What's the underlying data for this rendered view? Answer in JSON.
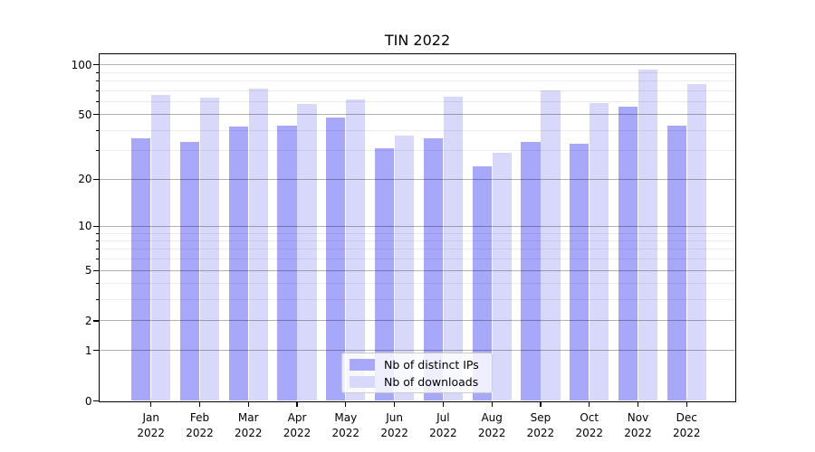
{
  "chart_data": {
    "type": "bar",
    "title": "TIN 2022",
    "year": "2022",
    "months": [
      "Jan",
      "Feb",
      "Mar",
      "Apr",
      "May",
      "Jun",
      "Jul",
      "Aug",
      "Sep",
      "Oct",
      "Nov",
      "Dec"
    ],
    "categories": [
      "Jan 2022",
      "Feb 2022",
      "Mar 2022",
      "Apr 2022",
      "May 2022",
      "Jun 2022",
      "Jul 2022",
      "Aug 2022",
      "Sep 2022",
      "Oct 2022",
      "Nov 2022",
      "Dec 2022"
    ],
    "series": [
      {
        "name": "Nb of distinct IPs",
        "key": "distinct-ips",
        "color": "#a8a8fa",
        "values": [
          36,
          34,
          42,
          43,
          48,
          31,
          36,
          24,
          34,
          33,
          56,
          43
        ]
      },
      {
        "name": "Nb of downloads",
        "key": "downloads",
        "color": "#d8d8fa",
        "values": [
          66,
          63,
          72,
          58,
          62,
          37,
          64,
          29,
          70,
          59,
          93,
          77
        ]
      }
    ],
    "y_axis": {
      "scale": "log(value+1)",
      "ticks": [
        0,
        1,
        2,
        5,
        10,
        20,
        50,
        100
      ],
      "minor_ticks": [
        3,
        4,
        6,
        7,
        8,
        9,
        30,
        40,
        60,
        70,
        80,
        90
      ],
      "ylim": [
        0,
        115
      ]
    },
    "legend": {
      "position": "lower center",
      "items": [
        "Nb of distinct IPs",
        "Nb of downloads"
      ]
    },
    "grid": true
  }
}
